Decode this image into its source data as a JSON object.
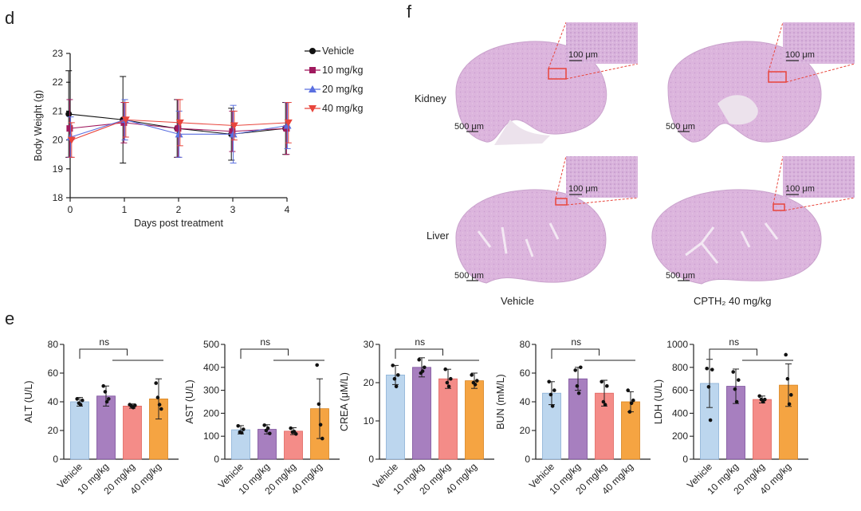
{
  "panels": {
    "d": "d",
    "e": "e",
    "f": "f"
  },
  "colors": {
    "vehicle": "#111111",
    "dose10": "#a0195e",
    "dose20": "#5a6fe0",
    "dose40": "#e8453c",
    "bar_vehicle": "#bcd6ee",
    "bar_10": "#a77fbf",
    "bar_20": "#f48c88",
    "bar_40": "#f5a442",
    "tissue": "#dcb5dd",
    "inset_border": "#e8453c"
  },
  "histology": {
    "row_labels": [
      "Kidney",
      "Liver"
    ],
    "col_labels": [
      "Vehicle",
      "CPTH₂ 40 mg/kg"
    ],
    "scale_large": "500 μm",
    "scale_inset": "100 μm"
  },
  "chart_data": [
    {
      "type": "line",
      "panel": "d",
      "xlabel": "Days post  treatment",
      "ylabel": "Body Weight (g)",
      "xlim": [
        0,
        4
      ],
      "ylim": [
        18,
        23
      ],
      "x": [
        0,
        1,
        2,
        3,
        4
      ],
      "x_ticks": [
        "0",
        "1",
        "2",
        "3",
        "4"
      ],
      "y_ticks": [
        "18",
        "19",
        "20",
        "21",
        "22",
        "23"
      ],
      "legend_position": "right",
      "series": [
        {
          "name": "Vehicle",
          "marker": "circle",
          "color": "#111111",
          "values": [
            20.9,
            20.7,
            20.4,
            20.2,
            20.4
          ],
          "error": [
            1.5,
            1.5,
            1.0,
            0.9,
            0.9
          ]
        },
        {
          "name": "10 mg/kg",
          "marker": "square",
          "color": "#a0195e",
          "values": [
            20.4,
            20.6,
            20.4,
            20.3,
            20.4
          ],
          "error": [
            1.0,
            0.7,
            1.0,
            0.7,
            0.9
          ]
        },
        {
          "name": "20 mg/kg",
          "marker": "triangle-up",
          "color": "#5a6fe0",
          "values": [
            20.1,
            20.7,
            20.2,
            20.2,
            20.5
          ],
          "error": [
            0.7,
            0.7,
            0.8,
            1.0,
            0.8
          ]
        },
        {
          "name": "40 mg/kg",
          "marker": "triangle-down",
          "color": "#e8453c",
          "values": [
            20.0,
            20.7,
            20.6,
            20.5,
            20.6
          ],
          "error": [
            0.6,
            0.6,
            0.8,
            0.5,
            0.7
          ]
        }
      ]
    },
    {
      "type": "bar",
      "panel": "e",
      "ylabel": "ALT (U/L)",
      "ylim": [
        0,
        80
      ],
      "y_ticks": [
        "0",
        "20",
        "40",
        "60",
        "80"
      ],
      "categories": [
        "Vehicle",
        "10 mg/kg",
        "20 mg/kg",
        "40 mg/kg"
      ],
      "values": [
        40,
        44,
        37,
        42
      ],
      "error": [
        3,
        7,
        1.5,
        14
      ],
      "points": [
        [
          42,
          39,
          38,
          41
        ],
        [
          51,
          47,
          40,
          42
        ],
        [
          38,
          37,
          36,
          37.5
        ],
        [
          53,
          43,
          38,
          35
        ]
      ],
      "significance": "ns"
    },
    {
      "type": "bar",
      "panel": "e",
      "ylabel": "AST (U/L)",
      "ylim": [
        0,
        500
      ],
      "y_ticks": [
        "0",
        "100",
        "200",
        "300",
        "400",
        "500"
      ],
      "categories": [
        "Vehicle",
        "10 mg/kg",
        "20 mg/kg",
        "40 mg/kg"
      ],
      "values": [
        128,
        130,
        122,
        220
      ],
      "error": [
        18,
        20,
        15,
        130
      ],
      "points": [
        [
          145,
          118,
          115,
          130
        ],
        [
          148,
          125,
          135,
          112
        ],
        [
          135,
          118,
          120,
          110
        ],
        [
          410,
          240,
          150,
          90
        ]
      ],
      "significance": "ns"
    },
    {
      "type": "bar",
      "panel": "e",
      "ylabel": "CREA (μM/L)",
      "ylim": [
        0,
        30
      ],
      "y_ticks": [
        "0",
        "10",
        "20",
        "30"
      ],
      "categories": [
        "Vehicle",
        "10 mg/kg",
        "20 mg/kg",
        "40 mg/kg"
      ],
      "values": [
        22,
        24,
        21,
        20.5
      ],
      "error": [
        2.5,
        2.5,
        2.5,
        2
      ],
      "points": [
        [
          24.5,
          21,
          19,
          22
        ],
        [
          26,
          22.5,
          23,
          24
        ],
        [
          23.5,
          20,
          19,
          21
        ],
        [
          22,
          20,
          19.5,
          20.5
        ]
      ],
      "significance": "ns"
    },
    {
      "type": "bar",
      "panel": "e",
      "ylabel": "BUN (mM/L)",
      "ylim": [
        0,
        80
      ],
      "y_ticks": [
        "0",
        "20",
        "40",
        "60",
        "80"
      ],
      "categories": [
        "Vehicle",
        "10 mg/kg",
        "20 mg/kg",
        "40 mg/kg"
      ],
      "values": [
        46,
        56,
        46,
        40
      ],
      "error": [
        8,
        8,
        9,
        7
      ],
      "points": [
        [
          54,
          45,
          37,
          48
        ],
        [
          62,
          51,
          46,
          64
        ],
        [
          54,
          40,
          38,
          51
        ],
        [
          48,
          33,
          39,
          41
        ]
      ],
      "significance": "ns"
    },
    {
      "type": "bar",
      "panel": "e",
      "ylabel": "LDH (U/L)",
      "ylim": [
        0,
        1000
      ],
      "y_ticks": [
        "0",
        "200",
        "400",
        "600",
        "800",
        "1000"
      ],
      "categories": [
        "Vehicle",
        "10 mg/kg",
        "20 mg/kg",
        "40 mg/kg"
      ],
      "values": [
        660,
        635,
        520,
        645
      ],
      "error": [
        210,
        150,
        30,
        185
      ],
      "points": [
        [
          790,
          630,
          340,
          780
        ],
        [
          760,
          610,
          500,
          690
        ],
        [
          550,
          520,
          500,
          520
        ],
        [
          910,
          700,
          480,
          560
        ]
      ],
      "significance": "ns"
    }
  ]
}
